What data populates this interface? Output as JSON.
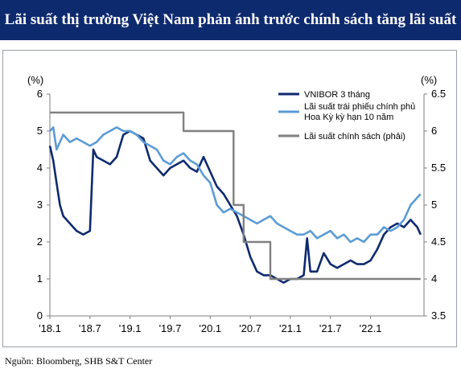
{
  "title": "Lãi suất thị trường Việt Nam phản ánh trước chính sách tăng lãi suất",
  "source": "Nguồn: Bloomberg, SHB S&T Center",
  "chart_data": {
    "type": "line",
    "left_axis_label": "(%)",
    "right_axis_label": "(%)",
    "left_ylim": [
      0,
      6
    ],
    "left_ticks": [
      "0",
      "1",
      "2",
      "3",
      "4",
      "5",
      "6"
    ],
    "right_ylim": [
      3.5,
      6.5
    ],
    "right_ticks": [
      "3.5",
      "4",
      "4.5",
      "5",
      "5.5",
      "6",
      "6.5"
    ],
    "x_ticks": [
      "'18.1",
      "'18.7",
      "'19.1",
      "'19.7",
      "'20.1",
      "'20.7",
      "'21.1",
      "'21.7",
      "'22.1"
    ],
    "x_range_months": [
      0,
      56
    ],
    "grid": false,
    "legend_position": "top-right",
    "series": [
      {
        "name": "VNIBOR 3 tháng",
        "axis": "left",
        "color": "#0e2a6e",
        "points": [
          [
            0,
            4.6
          ],
          [
            0.5,
            4.2
          ],
          [
            1,
            3.6
          ],
          [
            1.5,
            3.0
          ],
          [
            2,
            2.7
          ],
          [
            3,
            2.5
          ],
          [
            4,
            2.3
          ],
          [
            5,
            2.2
          ],
          [
            6,
            2.3
          ],
          [
            6.5,
            4.5
          ],
          [
            7,
            4.3
          ],
          [
            8,
            4.2
          ],
          [
            9,
            4.1
          ],
          [
            10,
            4.3
          ],
          [
            11,
            4.9
          ],
          [
            12,
            5.0
          ],
          [
            13,
            4.9
          ],
          [
            14,
            4.8
          ],
          [
            15,
            4.2
          ],
          [
            16,
            4.0
          ],
          [
            17,
            3.8
          ],
          [
            18,
            4.0
          ],
          [
            19,
            4.1
          ],
          [
            20,
            4.2
          ],
          [
            21,
            4.0
          ],
          [
            22,
            3.9
          ],
          [
            23,
            4.3
          ],
          [
            24,
            3.9
          ],
          [
            25,
            3.5
          ],
          [
            26,
            3.3
          ],
          [
            27,
            3.0
          ],
          [
            28,
            2.7
          ],
          [
            29,
            2.2
          ],
          [
            30,
            1.6
          ],
          [
            31,
            1.2
          ],
          [
            32,
            1.1
          ],
          [
            33,
            1.1
          ],
          [
            34,
            1.0
          ],
          [
            35,
            0.9
          ],
          [
            36,
            1.0
          ],
          [
            37,
            1.0
          ],
          [
            38,
            1.1
          ],
          [
            38.5,
            2.1
          ],
          [
            39,
            1.2
          ],
          [
            40,
            1.2
          ],
          [
            41,
            1.7
          ],
          [
            42,
            1.4
          ],
          [
            43,
            1.3
          ],
          [
            44,
            1.4
          ],
          [
            45,
            1.5
          ],
          [
            46,
            1.4
          ],
          [
            47,
            1.4
          ],
          [
            48,
            1.5
          ],
          [
            49,
            1.8
          ],
          [
            50,
            2.2
          ],
          [
            51,
            2.4
          ],
          [
            52,
            2.5
          ],
          [
            53,
            2.4
          ],
          [
            54,
            2.6
          ],
          [
            55,
            2.4
          ],
          [
            55.5,
            2.2
          ]
        ]
      },
      {
        "name": "Lãi suất trái phiếu chính phủ Hoa Kỳ kỳ hạn 10 năm",
        "axis": "left",
        "color": "#5b9bd5",
        "points": [
          [
            0,
            5.0
          ],
          [
            0.5,
            5.1
          ],
          [
            1,
            4.5
          ],
          [
            2,
            4.9
          ],
          [
            3,
            4.7
          ],
          [
            4,
            4.8
          ],
          [
            5,
            4.7
          ],
          [
            6,
            4.6
          ],
          [
            7,
            4.7
          ],
          [
            8,
            4.9
          ],
          [
            9,
            5.0
          ],
          [
            10,
            5.1
          ],
          [
            11,
            5.0
          ],
          [
            12,
            5.0
          ],
          [
            13,
            4.9
          ],
          [
            14,
            4.7
          ],
          [
            15,
            4.6
          ],
          [
            16,
            4.5
          ],
          [
            17,
            4.2
          ],
          [
            18,
            4.1
          ],
          [
            19,
            4.3
          ],
          [
            20,
            4.4
          ],
          [
            21,
            4.2
          ],
          [
            22,
            4.1
          ],
          [
            23,
            3.8
          ],
          [
            24,
            3.6
          ],
          [
            25,
            3.0
          ],
          [
            26,
            2.8
          ],
          [
            27,
            2.9
          ],
          [
            28,
            2.8
          ],
          [
            29,
            2.7
          ],
          [
            30,
            2.6
          ],
          [
            31,
            2.5
          ],
          [
            32,
            2.6
          ],
          [
            33,
            2.7
          ],
          [
            34,
            2.5
          ],
          [
            35,
            2.4
          ],
          [
            36,
            2.3
          ],
          [
            37,
            2.2
          ],
          [
            38,
            2.2
          ],
          [
            39,
            2.3
          ],
          [
            40,
            2.1
          ],
          [
            41,
            2.2
          ],
          [
            42,
            2.3
          ],
          [
            43,
            2.1
          ],
          [
            44,
            2.2
          ],
          [
            45,
            2.0
          ],
          [
            46,
            2.1
          ],
          [
            47,
            2.0
          ],
          [
            48,
            2.2
          ],
          [
            49,
            2.2
          ],
          [
            50,
            2.4
          ],
          [
            51,
            2.3
          ],
          [
            52,
            2.4
          ],
          [
            53,
            2.6
          ],
          [
            54,
            3.0
          ],
          [
            55,
            3.2
          ],
          [
            55.5,
            3.3
          ]
        ]
      },
      {
        "name": "Lãi suất chính sách (phải)",
        "axis": "right",
        "color": "#808080",
        "step": true,
        "points": [
          [
            0,
            6.25
          ],
          [
            20,
            6.25
          ],
          [
            20,
            6.0
          ],
          [
            27.5,
            6.0
          ],
          [
            27.5,
            5.0
          ],
          [
            29,
            5.0
          ],
          [
            29,
            4.5
          ],
          [
            33,
            4.5
          ],
          [
            33,
            4.0
          ],
          [
            55.5,
            4.0
          ]
        ]
      }
    ]
  }
}
